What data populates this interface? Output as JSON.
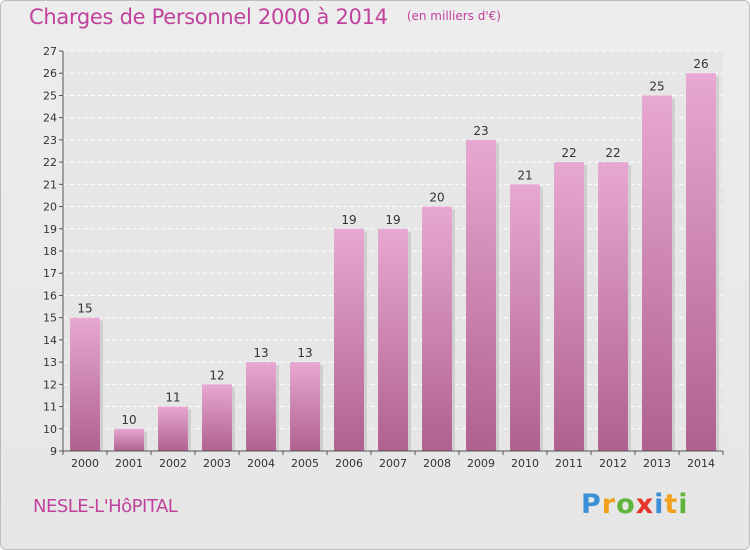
{
  "header": {
    "title": "Charges de Personnel 2000 à 2014",
    "subtitle": "(en milliers d'€)"
  },
  "footer": {
    "location": "NESLE-L'HôPITAL",
    "logo_letters": [
      {
        "ch": "P",
        "color": "#3b8fd6"
      },
      {
        "ch": "r",
        "color": "#f0a21c"
      },
      {
        "ch": "o",
        "color": "#5fb53c"
      },
      {
        "ch": "x",
        "color": "#e6352a"
      },
      {
        "ch": "i",
        "color": "#3b8fd6"
      },
      {
        "ch": "t",
        "color": "#f0a21c"
      },
      {
        "ch": "i",
        "color": "#5fb53c"
      }
    ]
  },
  "colors": {
    "accent": "#c0429c",
    "bar_top": "#e7a8d3",
    "bar_bottom": "#b0608e",
    "grid": "#ffffff"
  },
  "chart_data": {
    "type": "bar",
    "title": "Charges de Personnel 2000 à 2014",
    "subtitle": "(en milliers d'€)",
    "categories": [
      "2000",
      "2001",
      "2002",
      "2003",
      "2004",
      "2005",
      "2006",
      "2007",
      "2008",
      "2009",
      "2010",
      "2011",
      "2012",
      "2013",
      "2014"
    ],
    "values": [
      15,
      10,
      11,
      12,
      13,
      13,
      19,
      19,
      20,
      23,
      21,
      22,
      22,
      25,
      26
    ],
    "xlabel": "",
    "ylabel": "",
    "ylim": [
      9,
      27
    ],
    "yticks": [
      9,
      10,
      11,
      12,
      13,
      14,
      15,
      16,
      17,
      18,
      19,
      20,
      21,
      22,
      23,
      24,
      25,
      26,
      27
    ],
    "grid": true,
    "data_labels": true
  }
}
